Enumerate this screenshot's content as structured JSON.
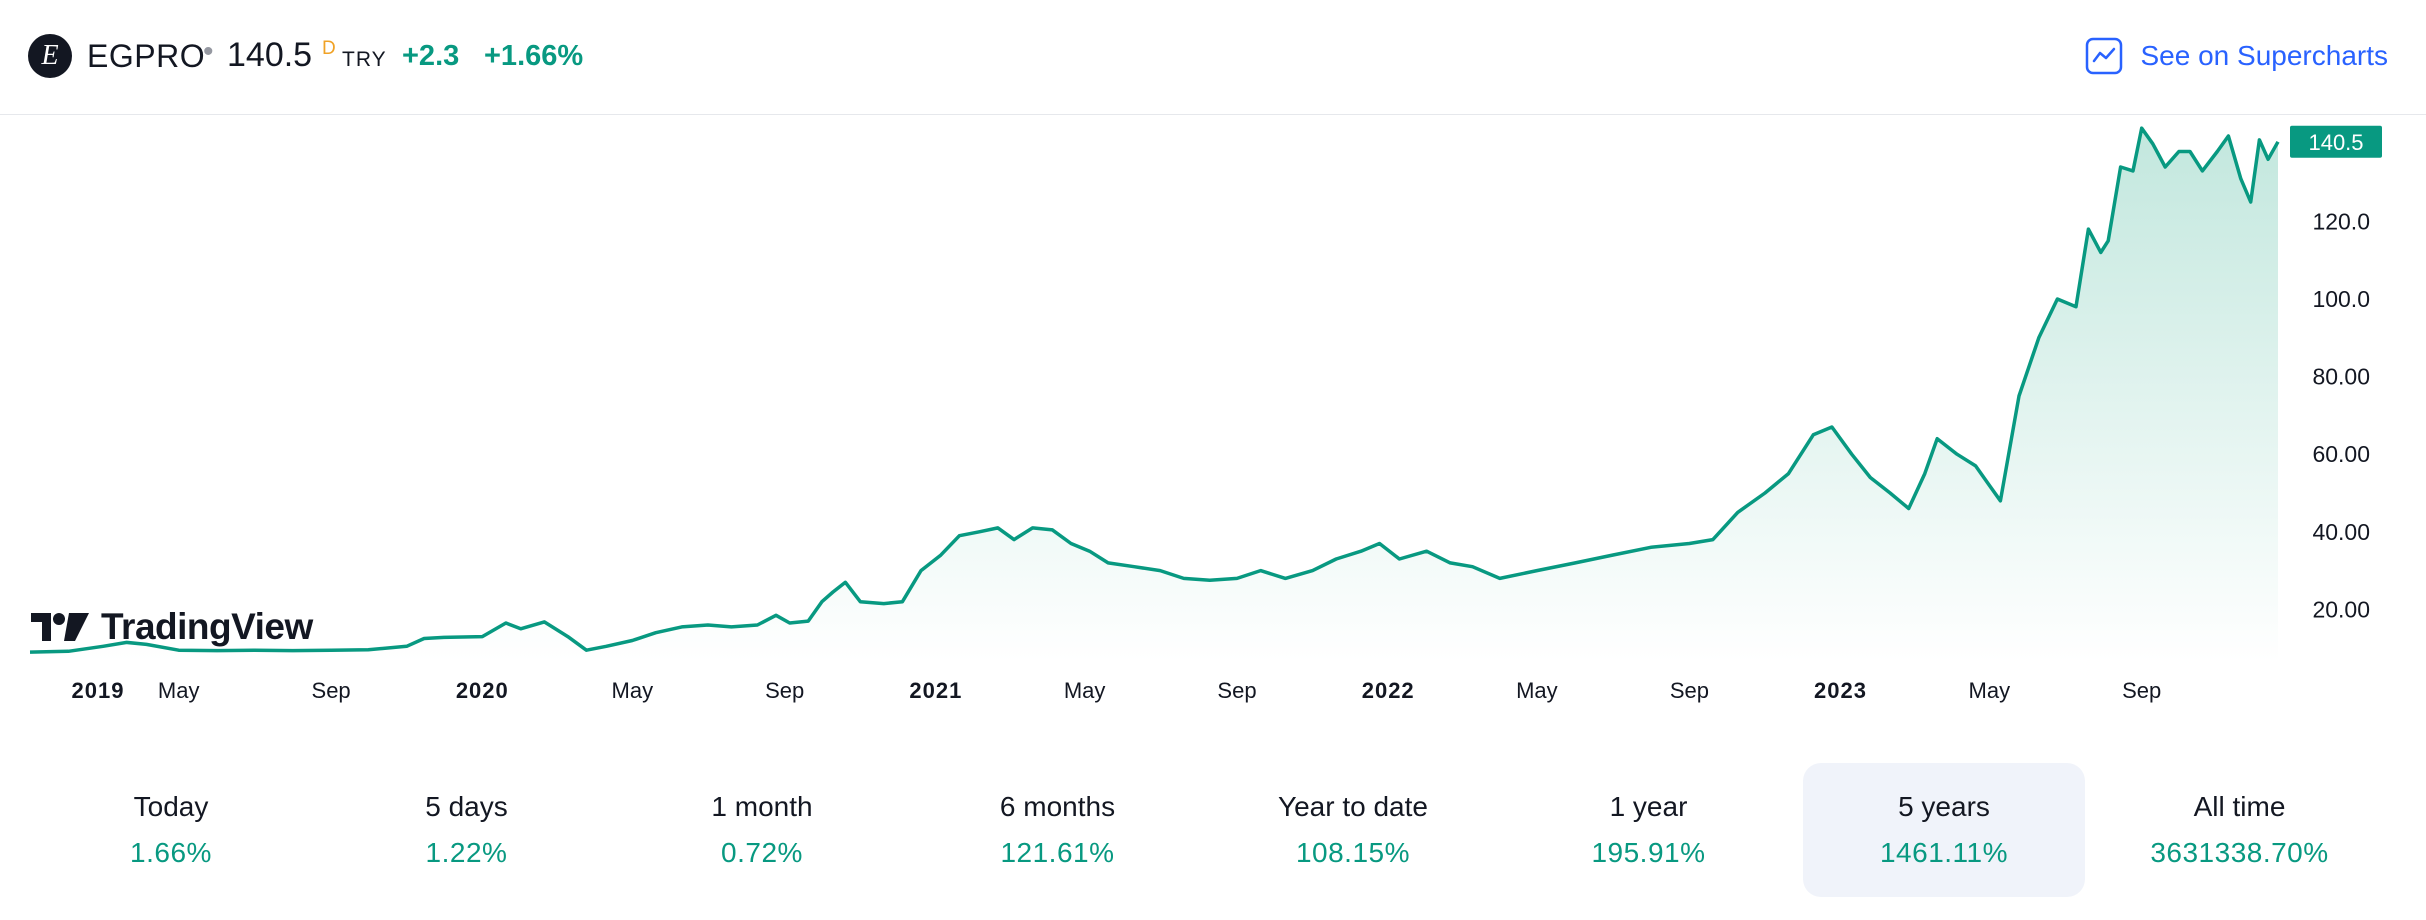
{
  "header": {
    "logo_letter": "E",
    "symbol": "EGPRO",
    "separator": "•",
    "price": "140.5",
    "interval_mark": "D",
    "currency": "TRY",
    "change": "+2.3",
    "change_percent": "+1.66%",
    "supercharts_label": "See on Supercharts",
    "supercharts_icon": "chart-line-icon"
  },
  "colors": {
    "line": "#089981",
    "fill_top": "#bfe6dc",
    "fill_bottom": "#ffffff",
    "price_badge": "#089981",
    "link": "#2962ff"
  },
  "watermark": {
    "text": "TradingView"
  },
  "chart_data": {
    "type": "area",
    "y_ticks": [
      "20.00",
      "40.00",
      "60.00",
      "80.00",
      "100.0",
      "120.0"
    ],
    "x_ticks": [
      {
        "label": "2019",
        "bold": true
      },
      {
        "label": "May",
        "bold": false
      },
      {
        "label": "Sep",
        "bold": false
      },
      {
        "label": "2020",
        "bold": true
      },
      {
        "label": "May",
        "bold": false
      },
      {
        "label": "Sep",
        "bold": false
      },
      {
        "label": "2021",
        "bold": true
      },
      {
        "label": "May",
        "bold": false
      },
      {
        "label": "Sep",
        "bold": false
      },
      {
        "label": "2022",
        "bold": true
      },
      {
        "label": "May",
        "bold": false
      },
      {
        "label": "Sep",
        "bold": false
      },
      {
        "label": "2023",
        "bold": true
      },
      {
        "label": "May",
        "bold": false
      },
      {
        "label": "Sep",
        "bold": false
      }
    ],
    "ylim": [
      8,
      142
    ],
    "last_value_label": "140.5",
    "series": [
      {
        "points": [
          [
            "2019-01-01",
            9.0
          ],
          [
            "2019-02-01",
            9.2
          ],
          [
            "2019-03-01",
            10.5
          ],
          [
            "2019-03-20",
            11.5
          ],
          [
            "2019-04-05",
            11.0
          ],
          [
            "2019-05-01",
            9.5
          ],
          [
            "2019-06-01",
            9.4
          ],
          [
            "2019-07-01",
            9.5
          ],
          [
            "2019-08-01",
            9.4
          ],
          [
            "2019-09-01",
            9.5
          ],
          [
            "2019-10-01",
            9.6
          ],
          [
            "2019-11-01",
            10.5
          ],
          [
            "2019-11-15",
            12.5
          ],
          [
            "2019-12-01",
            12.8
          ],
          [
            "2020-01-01",
            13.0
          ],
          [
            "2020-01-20",
            16.5
          ],
          [
            "2020-02-01",
            15.0
          ],
          [
            "2020-02-20",
            16.8
          ],
          [
            "2020-03-10",
            13.0
          ],
          [
            "2020-03-25",
            9.5
          ],
          [
            "2020-04-10",
            10.5
          ],
          [
            "2020-05-01",
            12.0
          ],
          [
            "2020-05-20",
            14.0
          ],
          [
            "2020-06-10",
            15.5
          ],
          [
            "2020-07-01",
            16.0
          ],
          [
            "2020-07-20",
            15.5
          ],
          [
            "2020-08-10",
            16.0
          ],
          [
            "2020-08-25",
            18.5
          ],
          [
            "2020-09-05",
            16.5
          ],
          [
            "2020-09-20",
            17.0
          ],
          [
            "2020-10-01",
            22.0
          ],
          [
            "2020-10-10",
            24.5
          ],
          [
            "2020-10-20",
            27.0
          ],
          [
            "2020-11-01",
            22.0
          ],
          [
            "2020-11-20",
            21.5
          ],
          [
            "2020-12-05",
            22.0
          ],
          [
            "2020-12-20",
            30.0
          ],
          [
            "2021-01-05",
            34.0
          ],
          [
            "2021-01-20",
            39.0
          ],
          [
            "2021-02-05",
            40.0
          ],
          [
            "2021-02-20",
            41.0
          ],
          [
            "2021-03-05",
            38.0
          ],
          [
            "2021-03-20",
            41.0
          ],
          [
            "2021-04-05",
            40.5
          ],
          [
            "2021-04-20",
            37.0
          ],
          [
            "2021-05-05",
            35.0
          ],
          [
            "2021-05-20",
            32.0
          ],
          [
            "2021-06-10",
            31.0
          ],
          [
            "2021-07-01",
            30.0
          ],
          [
            "2021-07-20",
            28.0
          ],
          [
            "2021-08-10",
            27.5
          ],
          [
            "2021-09-01",
            28.0
          ],
          [
            "2021-09-20",
            30.0
          ],
          [
            "2021-10-10",
            28.0
          ],
          [
            "2021-11-01",
            30.0
          ],
          [
            "2021-11-20",
            33.0
          ],
          [
            "2021-12-10",
            35.0
          ],
          [
            "2021-12-25",
            37.0
          ],
          [
            "2022-01-10",
            33.0
          ],
          [
            "2022-02-01",
            35.0
          ],
          [
            "2022-02-20",
            32.0
          ],
          [
            "2022-03-10",
            31.0
          ],
          [
            "2022-04-01",
            28.0
          ],
          [
            "2022-05-01",
            30.0
          ],
          [
            "2022-06-01",
            32.0
          ],
          [
            "2022-07-01",
            34.0
          ],
          [
            "2022-08-01",
            36.0
          ],
          [
            "2022-09-01",
            37.0
          ],
          [
            "2022-09-20",
            38.0
          ],
          [
            "2022-10-10",
            45.0
          ],
          [
            "2022-11-01",
            50.0
          ],
          [
            "2022-11-20",
            55.0
          ],
          [
            "2022-12-10",
            65.0
          ],
          [
            "2022-12-25",
            67.0
          ],
          [
            "2023-01-10",
            60.0
          ],
          [
            "2023-01-25",
            54.0
          ],
          [
            "2023-02-10",
            50.0
          ],
          [
            "2023-02-25",
            46.0
          ],
          [
            "2023-03-10",
            55.0
          ],
          [
            "2023-03-20",
            64.0
          ],
          [
            "2023-04-05",
            60.0
          ],
          [
            "2023-04-20",
            57.0
          ],
          [
            "2023-05-01",
            52.0
          ],
          [
            "2023-05-10",
            48.0
          ],
          [
            "2023-05-25",
            75.0
          ],
          [
            "2023-06-10",
            90.0
          ],
          [
            "2023-06-25",
            100.0
          ],
          [
            "2023-07-10",
            98.0
          ],
          [
            "2023-07-20",
            118.0
          ],
          [
            "2023-07-30",
            112.0
          ],
          [
            "2023-08-05",
            115.0
          ],
          [
            "2023-08-15",
            134.0
          ],
          [
            "2023-08-25",
            133.0
          ],
          [
            "2023-09-01",
            144.0
          ],
          [
            "2023-09-10",
            140.0
          ],
          [
            "2023-09-20",
            134.0
          ],
          [
            "2023-10-01",
            138.0
          ],
          [
            "2023-10-10",
            138.0
          ],
          [
            "2023-10-20",
            133.0
          ],
          [
            "2023-11-01",
            138.0
          ],
          [
            "2023-11-10",
            142.0
          ],
          [
            "2023-11-20",
            131.0
          ],
          [
            "2023-11-28",
            125.0
          ],
          [
            "2023-12-05",
            141.0
          ],
          [
            "2023-12-12",
            136.0
          ],
          [
            "2023-12-20",
            140.5
          ]
        ]
      }
    ]
  },
  "periods": [
    {
      "label": "Today",
      "value": "1.66%",
      "active": false
    },
    {
      "label": "5 days",
      "value": "1.22%",
      "active": false
    },
    {
      "label": "1 month",
      "value": "0.72%",
      "active": false
    },
    {
      "label": "6 months",
      "value": "121.61%",
      "active": false
    },
    {
      "label": "Year to date",
      "value": "108.15%",
      "active": false
    },
    {
      "label": "1 year",
      "value": "195.91%",
      "active": false
    },
    {
      "label": "5 years",
      "value": "1461.11%",
      "active": true
    },
    {
      "label": "All time",
      "value": "3631338.70%",
      "active": false
    }
  ]
}
